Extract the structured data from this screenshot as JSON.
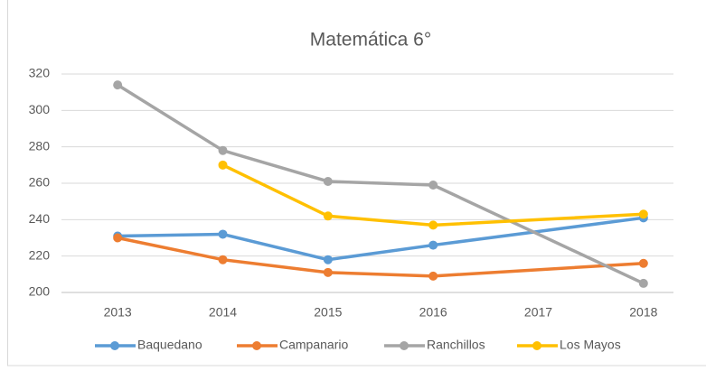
{
  "chart_data": {
    "type": "line",
    "title": "Matemática 6°",
    "xlim": [
      2012.5,
      2018.5
    ],
    "xticks": [
      2013,
      2014,
      2015,
      2016,
      2017,
      2018
    ],
    "ylim": [
      200,
      320
    ],
    "yticks": [
      200,
      220,
      240,
      260,
      280,
      300,
      320
    ],
    "grid": true,
    "series": [
      {
        "name": "Baquedano",
        "color": "#5b9bd5",
        "x": [
          2013,
          2014,
          2015,
          2016,
          2018
        ],
        "values": [
          231,
          232,
          218,
          226,
          241
        ]
      },
      {
        "name": "Campanario",
        "color": "#ed7d31",
        "x": [
          2013,
          2014,
          2015,
          2016,
          2018
        ],
        "values": [
          230,
          218,
          211,
          209,
          216
        ]
      },
      {
        "name": "Ranchillos",
        "color": "#a5a5a5",
        "x": [
          2013,
          2014,
          2015,
          2016,
          2018
        ],
        "values": [
          314,
          278,
          261,
          259,
          205
        ]
      },
      {
        "name": "Los Mayos",
        "color": "#ffc000",
        "x": [
          2014,
          2015,
          2016,
          2018
        ],
        "values": [
          270,
          242,
          237,
          243
        ]
      }
    ]
  }
}
